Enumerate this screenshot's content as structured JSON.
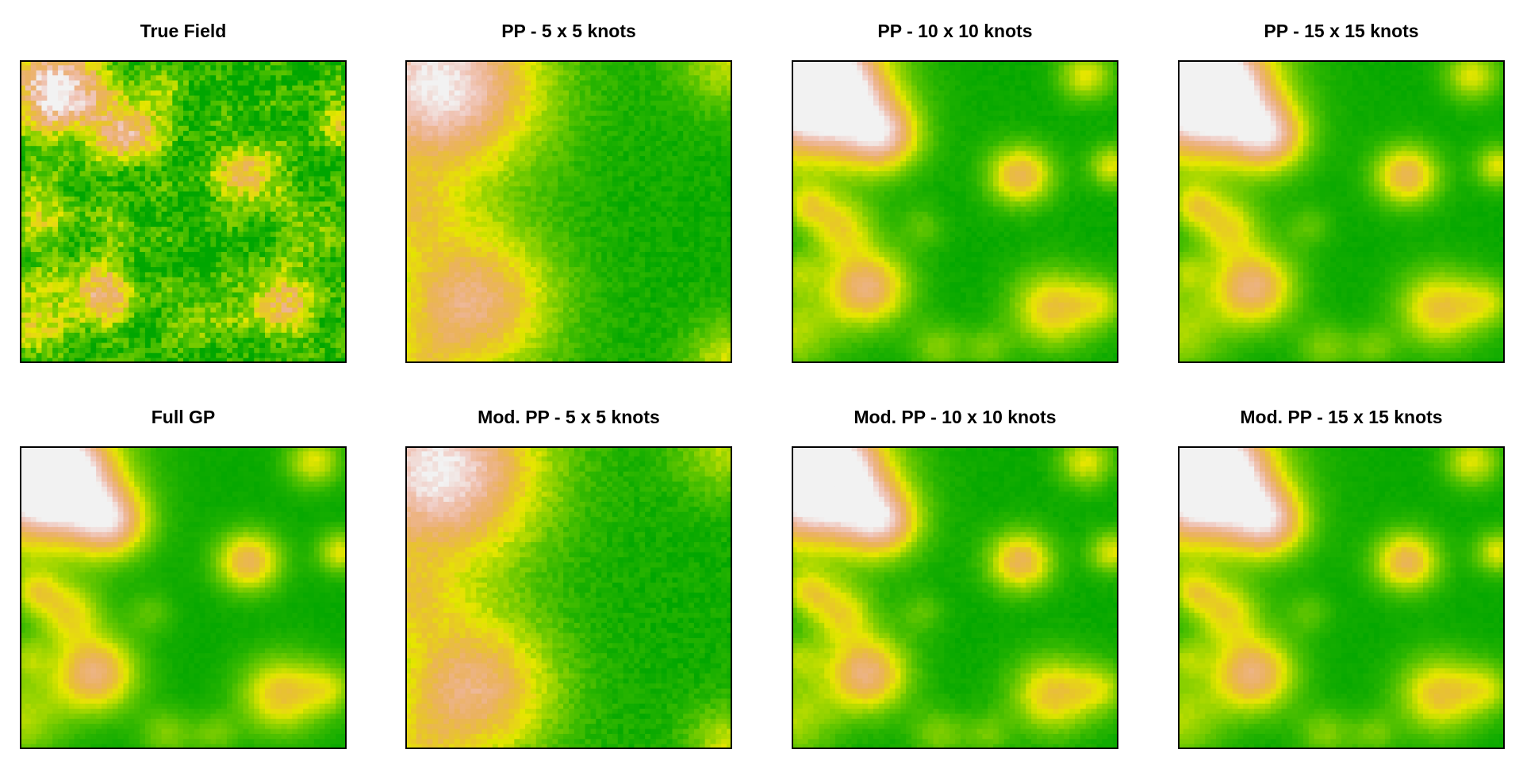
{
  "chart_data": [
    {
      "type": "heatmap",
      "title": "True Field",
      "smoothness": "noisy",
      "noise": 0.14,
      "legend": "none",
      "grid": false
    },
    {
      "type": "heatmap",
      "title": "PP - 5 x 5 knots",
      "smoothness": "very-smooth",
      "noise": 0.05,
      "legend": "none",
      "grid": false
    },
    {
      "type": "heatmap",
      "title": "PP - 10 x 10 knots",
      "smoothness": "smooth",
      "noise": 0.02,
      "legend": "none",
      "grid": false
    },
    {
      "type": "heatmap",
      "title": "PP - 15 x 15 knots",
      "smoothness": "smooth",
      "noise": 0.015,
      "legend": "none",
      "grid": false
    },
    {
      "type": "heatmap",
      "title": "Full GP",
      "smoothness": "smooth",
      "noise": 0.015,
      "legend": "none",
      "grid": false
    },
    {
      "type": "heatmap",
      "title": "Mod. PP - 5 x 5 knots",
      "smoothness": "very-smooth",
      "noise": 0.05,
      "legend": "none",
      "grid": false
    },
    {
      "type": "heatmap",
      "title": "Mod. PP - 10 x 10 knots",
      "smoothness": "smooth",
      "noise": 0.02,
      "legend": "none",
      "grid": false
    },
    {
      "type": "heatmap",
      "title": "Mod. PP - 15 x 15 knots",
      "smoothness": "smooth",
      "noise": 0.015,
      "legend": "none",
      "grid": false
    }
  ],
  "colors": {
    "palette": [
      "#00A600",
      "#2DB600",
      "#63C600",
      "#A0D600",
      "#E6E600",
      "#E8C32E",
      "#EBB25E",
      "#EDB48E",
      "#F0C9C0",
      "#F2F2F2"
    ],
    "frame": "#000000",
    "background": "#FFFFFF"
  }
}
